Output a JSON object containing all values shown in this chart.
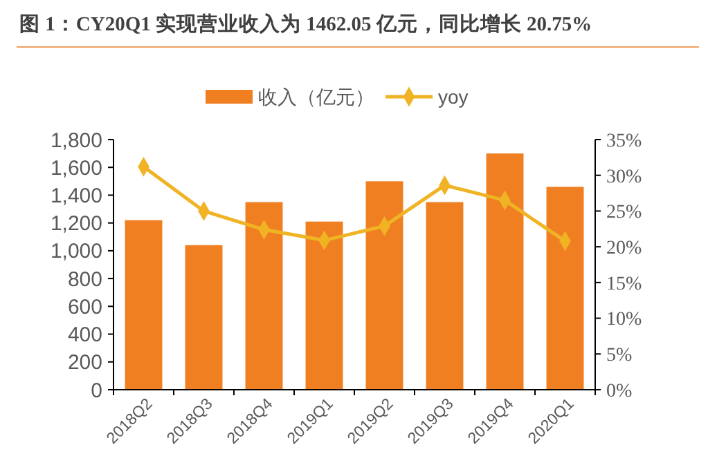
{
  "chart_data": {
    "type": "bar",
    "title": "图 1：CY20Q1 实现营业收入为 1462.05 亿元，同比增长 20.75%",
    "categories": [
      "2018Q2",
      "2018Q3",
      "2018Q4",
      "2019Q1",
      "2019Q2",
      "2019Q3",
      "2019Q4",
      "2020Q1"
    ],
    "series": [
      {
        "name": "收入（亿元）",
        "color": "#f07f22",
        "values": [
          1220,
          1040,
          1350,
          1210,
          1500,
          1350,
          1700,
          1460
        ]
      },
      {
        "name": "yoy",
        "type": "line",
        "axis": "y2",
        "color": "#f0b323",
        "marker": "diamond",
        "values": [
          31.2,
          25.0,
          22.4,
          20.9,
          22.9,
          28.6,
          26.5,
          20.8
        ]
      }
    ],
    "ylim": [
      0,
      1800
    ],
    "yticks": [
      {
        "value": 0,
        "label": "0"
      },
      {
        "value": 200,
        "label": "200"
      },
      {
        "value": 400,
        "label": "400"
      },
      {
        "value": 600,
        "label": "600"
      },
      {
        "value": 800,
        "label": "800"
      },
      {
        "value": 1000,
        "label": "1,000"
      },
      {
        "value": 1200,
        "label": "1,200"
      },
      {
        "value": 1400,
        "label": "1,400"
      },
      {
        "value": 1600,
        "label": "1,600"
      },
      {
        "value": 1800,
        "label": "1,800"
      }
    ],
    "y2lim": [
      0,
      35
    ],
    "y2ticks": [
      {
        "value": 0,
        "label": "0%"
      },
      {
        "value": 5,
        "label": "5%"
      },
      {
        "value": 10,
        "label": "10%"
      },
      {
        "value": 15,
        "label": "15%"
      },
      {
        "value": 20,
        "label": "20%"
      },
      {
        "value": 25,
        "label": "25%"
      },
      {
        "value": 30,
        "label": "30%"
      },
      {
        "value": 35,
        "label": "35%"
      }
    ],
    "legend": "top",
    "grid": false
  }
}
